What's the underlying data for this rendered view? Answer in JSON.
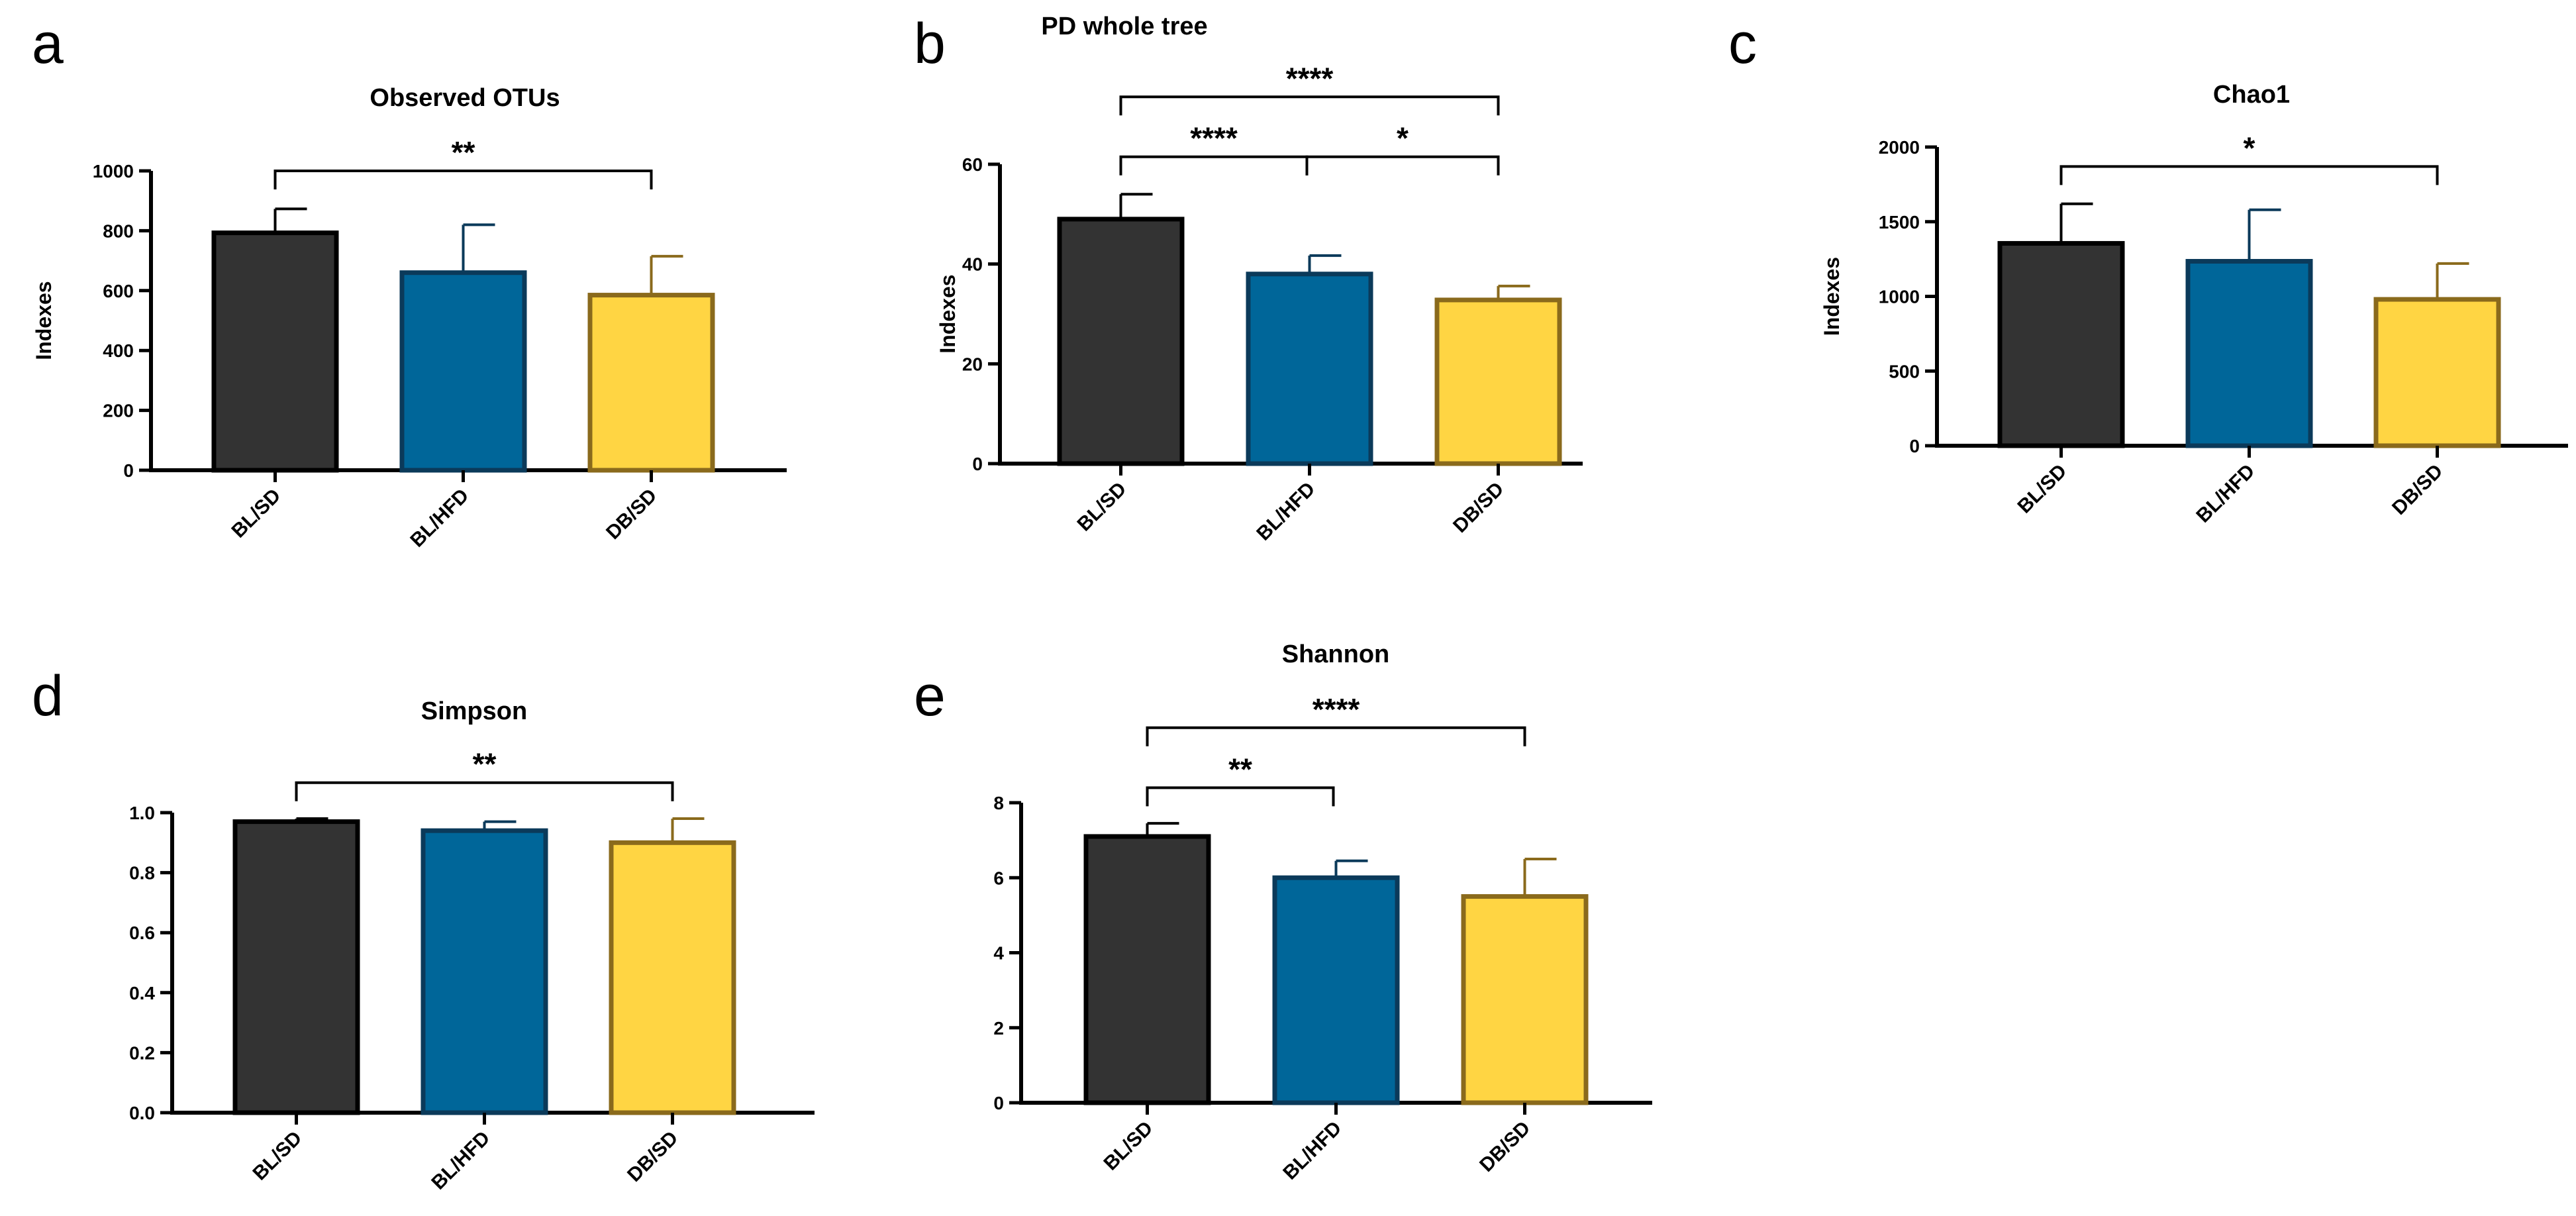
{
  "colors": {
    "BL/SD": "#333333",
    "BL/HFD": "#006699",
    "DB/SD": "#FFD543",
    "err_BL/SD": "#000000",
    "err_BL/HFD": "#0B3A5A",
    "err_DB/SD": "#8A6A1C"
  },
  "chart_data": [
    {
      "panel": "a",
      "type": "bar",
      "title": "Observed OTUs",
      "ylabel": "Indexes",
      "xlabel": "",
      "categories": [
        "BL/SD",
        "BL/HFD",
        "DB/SD"
      ],
      "values": [
        793,
        660,
        585
      ],
      "errors": [
        80,
        160,
        130
      ],
      "ylim": [
        0,
        1000
      ],
      "yticks": [
        0,
        200,
        400,
        600,
        800,
        1000
      ],
      "ytick_labels": [
        "0",
        "200",
        "400",
        "600",
        "800",
        "1000"
      ],
      "significance": [
        {
          "from": 0,
          "to": 2,
          "label": "**",
          "y": 1000
        }
      ]
    },
    {
      "panel": "b",
      "type": "bar",
      "title": "PD whole tree",
      "ylabel": "Indexes",
      "xlabel": "",
      "categories": [
        "BL/SD",
        "BL/HFD",
        "DB/SD"
      ],
      "values": [
        49,
        38,
        32.8
      ],
      "errors": [
        5,
        3.7,
        2.8
      ],
      "ylim": [
        0,
        60
      ],
      "yticks": [
        0,
        20,
        40,
        60
      ],
      "ytick_labels": [
        "0",
        "20",
        "40",
        "60"
      ],
      "significance": [
        {
          "from": 0,
          "to": 1,
          "label": "****",
          "y": 61.5
        },
        {
          "from": 1,
          "to": 2,
          "label": "*",
          "y": 61.5
        },
        {
          "from": 0,
          "to": 2,
          "label": "****",
          "y": 73.5
        }
      ]
    },
    {
      "panel": "c",
      "type": "bar",
      "title": "Chao1",
      "ylabel": "Indexes",
      "xlabel": "",
      "categories": [
        "BL/SD",
        "BL/HFD",
        "DB/SD"
      ],
      "values": [
        1355,
        1235,
        980
      ],
      "errors": [
        265,
        345,
        240
      ],
      "ylim": [
        0,
        2000
      ],
      "yticks": [
        0,
        500,
        1000,
        1500,
        2000
      ],
      "ytick_labels": [
        "0",
        "500",
        "1000",
        "1500",
        "2000"
      ],
      "significance": [
        {
          "from": 0,
          "to": 2,
          "label": "*",
          "y": 1870
        }
      ]
    },
    {
      "panel": "d",
      "type": "bar",
      "title": "Simpson",
      "ylabel": "",
      "xlabel": "",
      "categories": [
        "BL/SD",
        "BL/HFD",
        "DB/SD"
      ],
      "values": [
        0.97,
        0.94,
        0.9
      ],
      "errors": [
        0.01,
        0.03,
        0.08
      ],
      "ylim": [
        0,
        1.0
      ],
      "yticks": [
        0,
        0.2,
        0.4,
        0.6,
        0.8,
        1.0
      ],
      "ytick_labels": [
        "0.0",
        "0.2",
        "0.4",
        "0.6",
        "0.8",
        "1.0"
      ],
      "significance": [
        {
          "from": 0,
          "to": 2,
          "label": "**",
          "y": 1.1
        }
      ]
    },
    {
      "panel": "e",
      "type": "bar",
      "title": "Shannon",
      "ylabel": "",
      "xlabel": "",
      "categories": [
        "BL/SD",
        "BL/HFD",
        "DB/SD"
      ],
      "values": [
        7.1,
        6.0,
        5.5
      ],
      "errors": [
        0.35,
        0.45,
        1.0
      ],
      "ylim": [
        0,
        8
      ],
      "yticks": [
        0,
        2,
        4,
        6,
        8
      ],
      "ytick_labels": [
        "0",
        "2",
        "4",
        "6",
        "8"
      ],
      "significance": [
        {
          "from": 0,
          "to": 1,
          "label": "**",
          "y": 8.4
        },
        {
          "from": 0,
          "to": 2,
          "label": "****",
          "y": 10.0
        }
      ]
    }
  ]
}
